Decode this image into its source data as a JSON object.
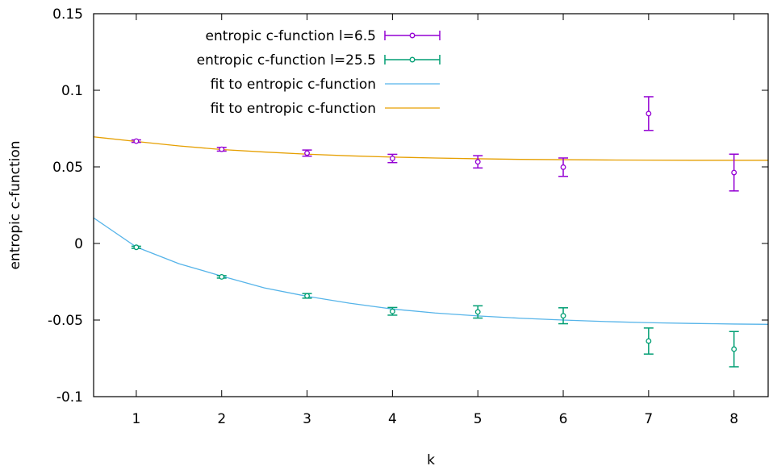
{
  "chart_data": {
    "type": "scatter",
    "title": "",
    "xlabel": "k",
    "ylabel": "entropic c-function",
    "xlim": [
      0.5,
      8.4
    ],
    "ylim": [
      -0.1,
      0.15
    ],
    "xticks": [
      1,
      2,
      3,
      4,
      5,
      6,
      7,
      8
    ],
    "xtick_labels": [
      "1",
      "2",
      "3",
      "4",
      "5",
      "6",
      "7",
      "8"
    ],
    "yticks": [
      -0.1,
      -0.05,
      0,
      0.05,
      0.1,
      0.15
    ],
    "ytick_labels": [
      "-0.1",
      "-0.05",
      "0",
      "0.05",
      "0.1",
      "0.15"
    ],
    "grid": false,
    "legend_position": "top-left",
    "series": [
      {
        "name": "entropic c-function l=6.5",
        "kind": "errorbars",
        "color": "#9400d3",
        "points": [
          {
            "x": 1,
            "y": 0.0668,
            "err": 0.0008
          },
          {
            "x": 2,
            "y": 0.0615,
            "err": 0.0012
          },
          {
            "x": 3,
            "y": 0.059,
            "err": 0.002
          },
          {
            "x": 4,
            "y": 0.0555,
            "err": 0.0027
          },
          {
            "x": 5,
            "y": 0.0533,
            "err": 0.004
          },
          {
            "x": 6,
            "y": 0.0498,
            "err": 0.006
          },
          {
            "x": 7,
            "y": 0.0848,
            "err": 0.011
          },
          {
            "x": 8,
            "y": 0.0463,
            "err": 0.012
          }
        ]
      },
      {
        "name": "entropic c-function l=25.5",
        "kind": "errorbars",
        "color": "#009e73",
        "points": [
          {
            "x": 1,
            "y": -0.0025,
            "err": 0.0007
          },
          {
            "x": 2,
            "y": -0.0218,
            "err": 0.0008
          },
          {
            "x": 3,
            "y": -0.0342,
            "err": 0.0015
          },
          {
            "x": 4,
            "y": -0.0443,
            "err": 0.0025
          },
          {
            "x": 5,
            "y": -0.0447,
            "err": 0.004
          },
          {
            "x": 6,
            "y": -0.0472,
            "err": 0.0052
          },
          {
            "x": 7,
            "y": -0.0637,
            "err": 0.0085
          },
          {
            "x": 8,
            "y": -0.069,
            "err": 0.0115
          }
        ]
      },
      {
        "name": "fit to entropic c-function",
        "kind": "line",
        "color": "#56b4e9",
        "x": [
          0.5,
          1,
          1.5,
          2,
          2.5,
          3,
          3.5,
          4,
          4.5,
          5,
          5.5,
          6,
          6.5,
          7,
          7.5,
          8,
          8.4
        ],
        "y": [
          0.0167,
          -0.0023,
          -0.0132,
          -0.0213,
          -0.029,
          -0.0345,
          -0.039,
          -0.0428,
          -0.0454,
          -0.0473,
          -0.0488,
          -0.05,
          -0.051,
          -0.0517,
          -0.0522,
          -0.0526,
          -0.0528
        ]
      },
      {
        "name": "fit to entropic c-function",
        "kind": "line",
        "color": "#e69f00",
        "x": [
          0.5,
          1,
          1.5,
          2,
          2.5,
          3,
          3.5,
          4,
          4.5,
          5,
          5.5,
          6,
          6.5,
          7,
          7.5,
          8,
          8.4
        ],
        "y": [
          0.0696,
          0.0666,
          0.0637,
          0.0613,
          0.0597,
          0.0583,
          0.0572,
          0.0564,
          0.0558,
          0.0553,
          0.0549,
          0.0547,
          0.0545,
          0.0544,
          0.0543,
          0.0543,
          0.0543
        ]
      }
    ]
  }
}
